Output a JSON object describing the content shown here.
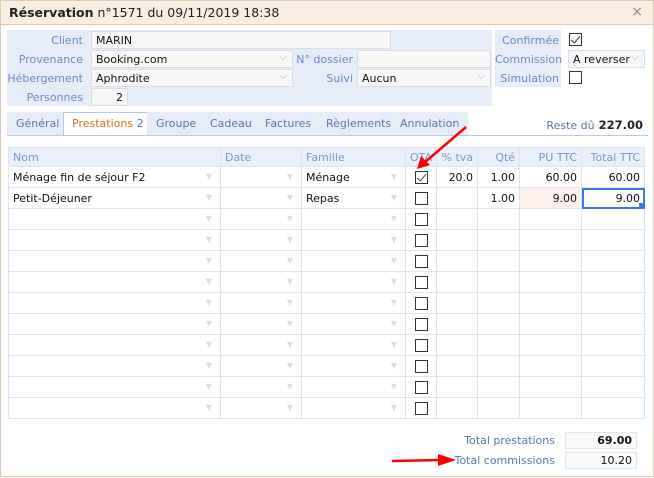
{
  "window": {
    "title_bold": "Réservation",
    "title_rest": " n°1571 du 09/11/2019 18:38",
    "close": "close"
  },
  "form": {
    "client_label": "Client",
    "client_value": "MARIN",
    "provenance_label": "Provenance",
    "provenance_value": "Booking.com",
    "dossier_label": "N° dossier",
    "dossier_value": "",
    "hebergement_label": "Hébergement",
    "hebergement_value": "Aphrodite",
    "suivi_label": "Suivi",
    "suivi_value": "Aucun",
    "personnes_label": "Personnes",
    "personnes_value": "2",
    "confirmee_label": "Confirmée",
    "confirmee_checked": true,
    "commission_label": "Commission",
    "commission_value": "A reverser",
    "simulation_label": "Simulation",
    "simulation_checked": false
  },
  "tabs": [
    {
      "label": "Général"
    },
    {
      "label": "Prestations",
      "count": "2",
      "active": true
    },
    {
      "label": "Groupe"
    },
    {
      "label": "Cadeau"
    },
    {
      "label": "Factures"
    },
    {
      "label": "Règlements"
    },
    {
      "label": "Annulation"
    }
  ],
  "reste": {
    "label": "Reste dû",
    "value": "227.00"
  },
  "grid": {
    "columns": [
      "Nom",
      "Date",
      "Famille",
      "OTA",
      "% tva",
      "Qté",
      "PU TTC",
      "Total TTC"
    ],
    "rows": [
      {
        "nom": "Ménage fin de séjour F2",
        "date": "",
        "famille": "Ménage",
        "ota": true,
        "tva": "20.0",
        "qte": "1.00",
        "pu": "60.00",
        "total": "60.00"
      },
      {
        "nom": "Petit-Déjeuner",
        "date": "",
        "famille": "Repas",
        "ota": false,
        "tva": "",
        "qte": "1.00",
        "pu": "9.00",
        "total": "9.00",
        "selected": true
      },
      {},
      {},
      {},
      {},
      {},
      {},
      {},
      {},
      {},
      {}
    ]
  },
  "totals": {
    "prestations_label": "Total prestations",
    "prestations_value": "69.00",
    "commissions_label": "Total commissions",
    "commissions_value": "10.20"
  },
  "colors": {
    "accent": "#3a7be0",
    "active_tab": "#e06d1a",
    "label": "#6f87c0",
    "annotation_arrow": "#ff0000"
  }
}
